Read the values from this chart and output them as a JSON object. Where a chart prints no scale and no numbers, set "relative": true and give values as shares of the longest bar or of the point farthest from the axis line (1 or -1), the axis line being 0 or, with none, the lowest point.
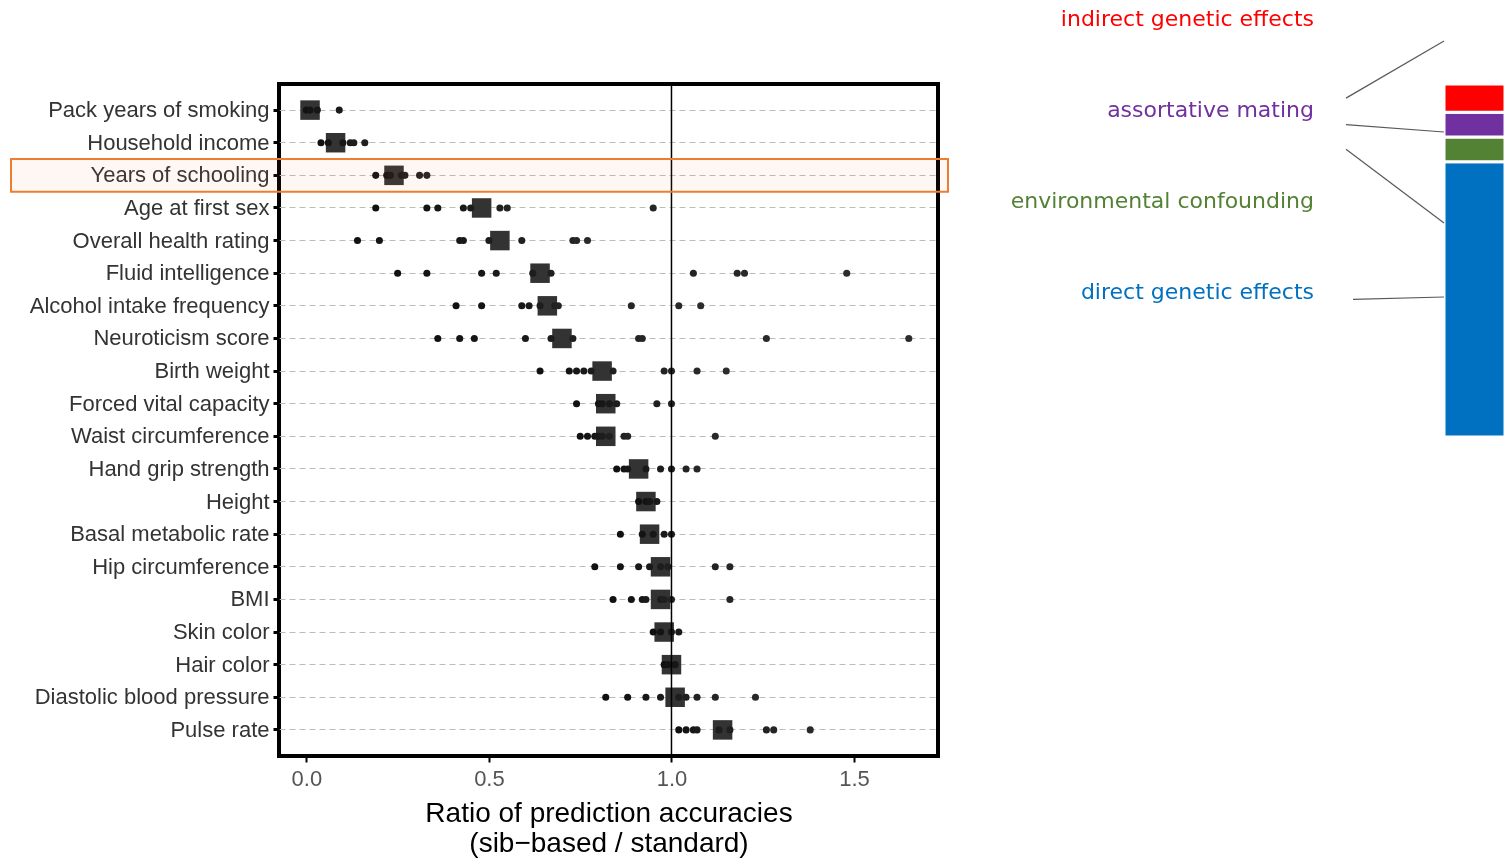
{
  "chart_data": [
    {
      "type": "scatter",
      "orientation": "horizontal",
      "xlabel": "Ratio of prediction accuracies\n(sib−based / standard)",
      "categories": [
        "Pack years of smoking",
        "Household income",
        "Years of schooling",
        "Age at first sex",
        "Overall health rating",
        "Fluid intelligence",
        "Alcohol intake frequency",
        "Neuroticism score",
        "Birth weight",
        "Forced vital capacity",
        "Waist circumference",
        "Hand grip strength",
        "Height",
        "Basal metabolic rate",
        "Hip circumference",
        "BMI",
        "Skin color",
        "Hair color",
        "Diastolic blood pressure",
        "Pulse rate"
      ],
      "xlim": [
        -0.075,
        1.73
      ],
      "xticks": [
        {
          "value": 0,
          "label": "0.0"
        },
        0.5,
        {
          "value": 1,
          "label": "1.0"
        },
        1.5
      ],
      "grid": "y",
      "ref_lines": [
        {
          "axis": "x",
          "value": 1,
          "color": "#000000"
        }
      ],
      "bands": [
        {
          "axis": "y",
          "from": "Years of schooling",
          "to": "Years of schooling",
          "color": "#ed7d31"
        }
      ],
      "series": [
        {
          "marker": "square",
          "color": "#333333",
          "values": [
            0.01,
            0.08,
            0.24,
            0.48,
            0.53,
            0.64,
            0.66,
            0.7,
            0.81,
            0.82,
            0.82,
            0.91,
            0.93,
            0.94,
            0.97,
            0.97,
            0.98,
            1.0,
            1.01,
            1.14
          ]
        },
        {
          "marker": "circle",
          "color": "#111111",
          "values": [
            0,
            0.04,
            0.19,
            0.19,
            0.14,
            0.25,
            0.41,
            0.36,
            0.64,
            0.74,
            0.75,
            0.85,
            0.91,
            0.86,
            0.79,
            0.84,
            0.95,
            0.98,
            0.82,
            1.02
          ]
        },
        {
          "marker": "circle",
          "color": "#141414",
          "values": [
            0.01,
            0.06,
            0.22,
            0.33,
            0.2,
            0.33,
            0.48,
            0.42,
            0.72,
            0.8,
            0.77,
            0.87,
            0.93,
            0.92,
            0.86,
            0.89,
            0.97,
            0.99,
            0.88,
            1.04
          ]
        },
        {
          "marker": "circle",
          "color": "#171717",
          "values": [
            0.03,
            0.1,
            0.23,
            0.36,
            0.42,
            0.48,
            0.59,
            0.46,
            0.74,
            0.81,
            0.79,
            0.88,
            0.94,
            0.95,
            0.91,
            0.92,
            1.0,
            1.01,
            0.93,
            1.06
          ]
        },
        {
          "marker": "circle",
          "color": "#1a1a1a",
          "values": [
            0.09,
            0.12,
            0.26,
            0.43,
            0.43,
            0.52,
            0.61,
            0.6,
            0.76,
            0.83,
            0.8,
            0.93,
            0.96,
            0.98,
            0.94,
            0.93,
            1.02,
            null,
            0.97,
            1.07
          ]
        },
        {
          "marker": "circle",
          "color": "#1d1d1d",
          "values": [
            null,
            0.13,
            0.27,
            0.45,
            0.5,
            0.62,
            0.64,
            0.67,
            0.78,
            0.85,
            0.81,
            0.97,
            null,
            1.0,
            0.97,
            0.97,
            null,
            null,
            1.02,
            1.13
          ]
        },
        {
          "marker": "circle",
          "color": "#202020",
          "values": [
            null,
            0.16,
            0.31,
            0.53,
            0.59,
            0.67,
            0.68,
            0.73,
            0.84,
            0.96,
            0.83,
            1.0,
            null,
            null,
            0.99,
            0.98,
            null,
            null,
            1.04,
            1.16
          ]
        },
        {
          "marker": "circle",
          "color": "#232323",
          "values": [
            null,
            null,
            0.33,
            0.55,
            0.73,
            1.06,
            0.69,
            0.91,
            0.98,
            1.0,
            0.87,
            1.04,
            null,
            null,
            1.12,
            1.0,
            null,
            null,
            1.07,
            1.26
          ]
        },
        {
          "marker": "circle",
          "color": "#262626",
          "values": [
            null,
            null,
            null,
            0.95,
            0.74,
            1.18,
            0.89,
            0.92,
            1.0,
            null,
            0.88,
            1.07,
            null,
            null,
            1.16,
            1.16,
            null,
            null,
            1.12,
            1.28
          ]
        },
        {
          "marker": "circle",
          "color": "#292929",
          "values": [
            null,
            null,
            null,
            null,
            0.77,
            1.2,
            1.02,
            1.26,
            1.07,
            null,
            1.12,
            null,
            null,
            null,
            null,
            null,
            null,
            null,
            1.23,
            1.38
          ]
        },
        {
          "marker": "circle",
          "color": "#2c2c2c",
          "values": [
            null,
            null,
            null,
            null,
            null,
            1.48,
            1.08,
            1.65,
            1.15,
            null,
            null,
            null,
            null,
            null,
            null,
            null,
            null,
            null,
            null,
            null
          ]
        }
      ]
    },
    {
      "type": "bar",
      "stacked": true,
      "relative": true,
      "categories": [
        null
      ],
      "series": [
        {
          "name": "direct genetic effects",
          "color": "#0070c0",
          "values": [
            0.78
          ]
        },
        {
          "name": "environmental confounding",
          "color": "#548235",
          "values": [
            0.07
          ]
        },
        {
          "name": "assortative mating",
          "color": "#7030a0",
          "values": [
            0.07
          ]
        },
        {
          "name": "indirect genetic effects",
          "color": "#ff0000",
          "values": [
            0.08
          ]
        }
      ]
    }
  ]
}
